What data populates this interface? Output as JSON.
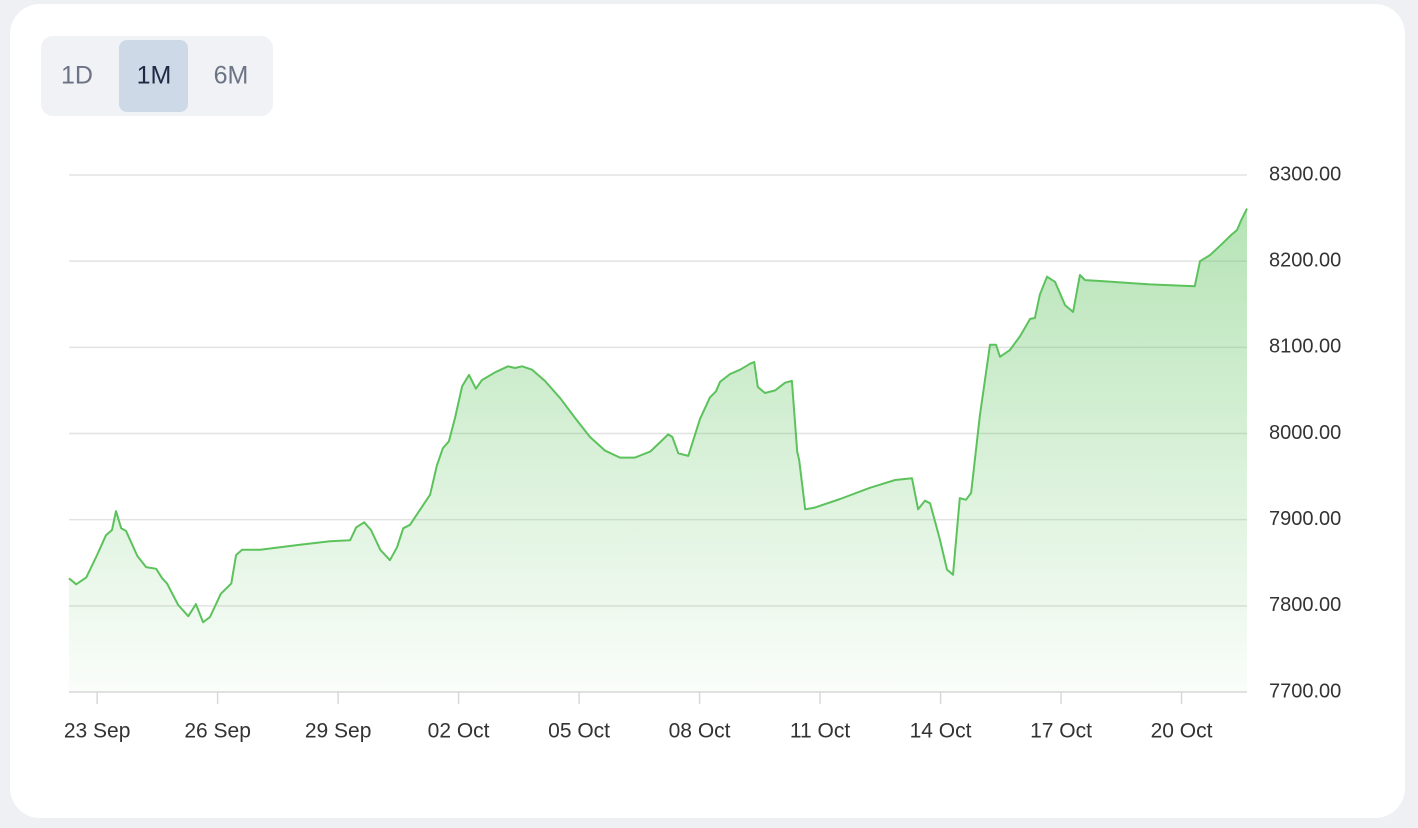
{
  "range_buttons": [
    "1D",
    "1M",
    "6M"
  ],
  "selected": 1,
  "chart_data": {
    "type": "area",
    "color": "#5cc25c",
    "x": [
      -0.7,
      -0.52,
      -0.27,
      0,
      0.22,
      0.37,
      0.47,
      0.6,
      0.72,
      1.0,
      1.22,
      1.47,
      1.62,
      1.74,
      2.02,
      2.27,
      2.46,
      2.64,
      2.81,
      3.08,
      3.34,
      3.46,
      3.61,
      4.06,
      5.05,
      5.8,
      6.3,
      6.45,
      6.65,
      6.82,
      7.05,
      7.29,
      7.47,
      7.62,
      7.79,
      7.99,
      8.29,
      8.46,
      8.61,
      8.76,
      8.91,
      9.09,
      9.26,
      9.43,
      9.58,
      9.91,
      10.23,
      10.41,
      10.58,
      10.83,
      11.15,
      11.53,
      11.9,
      12.27,
      12.65,
      13.02,
      13.39,
      13.77,
      14.02,
      14.22,
      14.32,
      14.47,
      14.72,
      15.01,
      15.26,
      15.41,
      15.51,
      15.76,
      16.01,
      16.26,
      16.36,
      16.45,
      16.63,
      16.88,
      17.13,
      17.3,
      17.43,
      17.48,
      17.63,
      17.87,
      18.5,
      19.24,
      19.87,
      20.29,
      20.44,
      20.61,
      20.74,
      20.99,
      21.16,
      21.31,
      21.48,
      21.63,
      21.76,
      21.98,
      22.23,
      22.38,
      22.48,
      22.73,
      22.98,
      23.23,
      23.35,
      23.47,
      23.65,
      23.85,
      24.1,
      24.3,
      24.47,
      24.6,
      24.97,
      26.21,
      27.33,
      27.46,
      27.71,
      27.96,
      28.25,
      28.38,
      28.5,
      28.63
    ],
    "values": [
      7832,
      7825,
      7833,
      7859,
      7882,
      7888,
      7910,
      7890,
      7887,
      7858,
      7845,
      7843,
      7832,
      7826,
      7801,
      7788,
      7802,
      7781,
      7787,
      7814,
      7826,
      7859,
      7865,
      7865,
      7871,
      7875,
      7876,
      7891,
      7897,
      7888,
      7865,
      7853,
      7868,
      7890,
      7894,
      7908,
      7929,
      7963,
      7983,
      7991,
      8018,
      8055,
      8068,
      8052,
      8062,
      8071,
      8078,
      8076,
      8078,
      8074,
      8061,
      8041,
      8018,
      7996,
      7980,
      7972,
      7972,
      7979,
      7990,
      7999,
      7996,
      7977,
      7974,
      8017,
      8042,
      8049,
      8060,
      8069,
      8074,
      8081,
      8083,
      8054,
      8047,
      8050,
      8059,
      8061,
      7979,
      7969,
      7912,
      7914,
      7924,
      7937,
      7946,
      7948,
      7912,
      7922,
      7919,
      7876,
      7842,
      7836,
      7925,
      7923,
      7931,
      8021,
      8103,
      8103,
      8089,
      8097,
      8113,
      8133,
      8134,
      8161,
      8182,
      8176,
      8149,
      8141,
      8184,
      8178,
      8177,
      8173,
      8171,
      8200,
      8207,
      8218,
      8231,
      8236,
      8249,
      8261
    ],
    "xlim": [
      -0.7,
      28.63
    ],
    "xticks": [
      {
        "value": 0,
        "label": "23 Sep"
      },
      {
        "value": 3,
        "label": "26 Sep"
      },
      {
        "value": 6,
        "label": "29 Sep"
      },
      {
        "value": 9,
        "label": "02 Oct"
      },
      {
        "value": 12,
        "label": "05 Oct"
      },
      {
        "value": 15,
        "label": "08 Oct"
      },
      {
        "value": 18,
        "label": "11 Oct"
      },
      {
        "value": 21,
        "label": "14 Oct"
      },
      {
        "value": 24,
        "label": "17 Oct"
      },
      {
        "value": 27,
        "label": "20 Oct"
      }
    ],
    "ylim": [
      7700,
      8300
    ],
    "yticks": [
      {
        "value": 7700,
        "label": "7700.00"
      },
      {
        "value": 7800,
        "label": "7800.00"
      },
      {
        "value": 7900,
        "label": "7900.00"
      },
      {
        "value": 8000,
        "label": "8000.00"
      },
      {
        "value": 8100,
        "label": "8100.00"
      },
      {
        "value": 8200,
        "label": "8200.00"
      },
      {
        "value": 8300,
        "label": "8300.00"
      }
    ],
    "grid": true
  }
}
